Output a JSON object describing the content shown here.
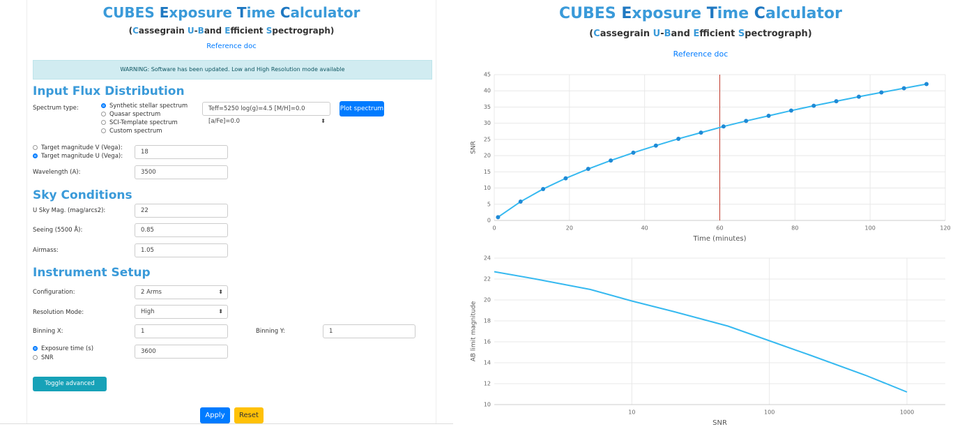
{
  "header": {
    "title": "CUBES Exposure Time Calculator",
    "subtitle": "(Cassegrain U-Band Efficient Spectrograph)",
    "link": "Reference doc"
  },
  "warning": "WARNING: Software has been updated. Low and High Resolution mode available",
  "form": {
    "sections": [
      "Input Flux Distribution",
      "Sky Conditions",
      "Instrument Setup"
    ],
    "spectrum_type": {
      "label": "Spectrum type:",
      "options": [
        "Synthetic stellar spectrum",
        "Quasar spectrum",
        "SCI-Template spectrum",
        "Custom spectrum"
      ],
      "selected": 0,
      "select": "Teff=5250 log(g)=4.5 [M/H]=0.0 [a/Fe]=0.0",
      "button": "Plot spectrum"
    },
    "magnitude": {
      "options": [
        "Target magnitude V (Vega):",
        "Target magnitude U (Vega):"
      ],
      "selected": 1,
      "value": "18"
    },
    "wavelength": {
      "label": "Wavelength (A):",
      "value": "3500"
    },
    "sky_mag": {
      "label": "U Sky Mag. (mag/arcs2):",
      "value": "22"
    },
    "seeing": {
      "label": "Seeing (5500 Å):",
      "value": "0.85"
    },
    "airmass": {
      "label": "Airmass:",
      "value": "1.05"
    },
    "configuration": {
      "label": "Configuration:",
      "value": "2 Arms"
    },
    "resolution": {
      "label": "Resolution Mode:",
      "value": "High"
    },
    "binning_x": {
      "label": "Binning X:",
      "value": "1"
    },
    "binning_y": {
      "label": "Binning Y:",
      "value": "1"
    },
    "mode": {
      "options": [
        "Exposure time (s)",
        "SNR"
      ],
      "selected": 0,
      "value": "3600"
    },
    "buttons": {
      "advanced": "Toggle advanced settings",
      "apply": "Apply",
      "reset": "Reset"
    }
  },
  "chart_data": [
    {
      "type": "line",
      "markers": true,
      "color": "#36b9f0",
      "xlabel": "Time (minutes)",
      "ylabel": "SNR",
      "x": [
        1,
        7,
        13,
        19,
        25,
        31,
        37,
        43,
        49,
        55,
        61,
        67,
        73,
        79,
        85,
        91,
        97,
        103,
        109,
        115
      ],
      "values": [
        1,
        5.8,
        9.7,
        13,
        15.9,
        18.5,
        20.9,
        23.1,
        25.2,
        27.1,
        29,
        30.7,
        32.3,
        33.9,
        35.4,
        36.8,
        38.2,
        39.5,
        40.8,
        42.1
      ],
      "xlim": [
        0,
        120
      ],
      "xticks": [
        0,
        20,
        40,
        60,
        80,
        100,
        120
      ],
      "ylim": [
        0,
        45
      ],
      "yticks": [
        0,
        5,
        10,
        15,
        20,
        25,
        30,
        35,
        40,
        45
      ],
      "vline": 60,
      "vline_color": "#c0392b",
      "grid": true
    },
    {
      "type": "line",
      "markers": false,
      "xlog": true,
      "color": "#36b9f0",
      "xlabel": "SNR",
      "ylabel": "AB limit magnitude",
      "x": [
        1,
        2,
        5,
        10,
        20,
        50,
        100,
        200,
        500,
        1000
      ],
      "values": [
        22.7,
        22.0,
        21.0,
        19.9,
        18.9,
        17.5,
        16.1,
        14.7,
        12.8,
        11.2
      ],
      "xlim": [
        1,
        1900
      ],
      "xticks": [
        10,
        100,
        1000
      ],
      "ylim": [
        10,
        24
      ],
      "yticks": [
        10,
        12,
        14,
        16,
        18,
        20,
        22,
        24
      ],
      "grid": true
    }
  ]
}
